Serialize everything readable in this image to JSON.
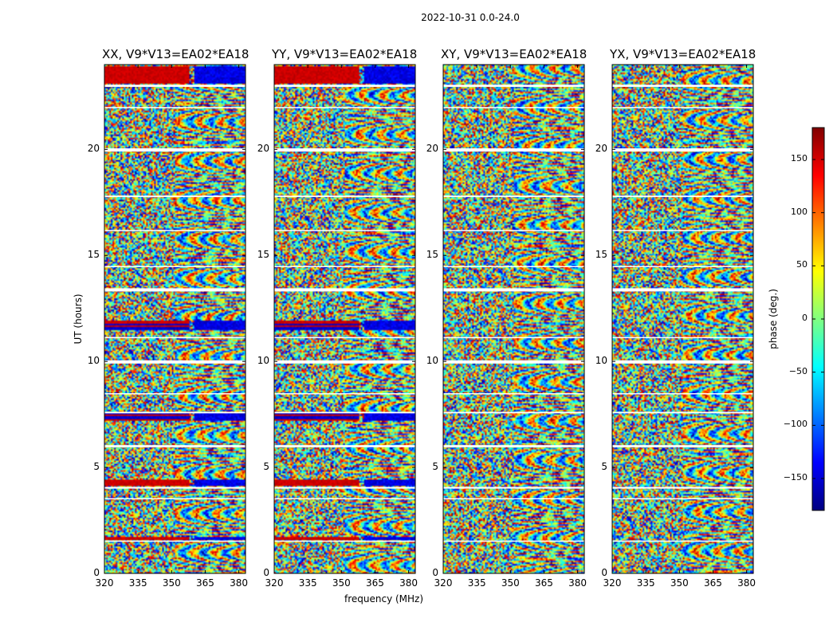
{
  "suptitle": "2022-10-31 0.0-24.0",
  "chart_data": {
    "type": "heatmap",
    "ylabel": "UT (hours)",
    "xlabel": "frequency (MHz)",
    "xlim": [
      320,
      383
    ],
    "ylim": [
      0,
      24
    ],
    "xticks": [
      320,
      335,
      350,
      365,
      380
    ],
    "yticks": [
      0,
      5,
      10,
      15,
      20
    ],
    "panels": [
      {
        "title": "XX, V9*V13=EA02*EA18",
        "strong_bands": [
          [
            11.45,
            11.9
          ],
          [
            7.2,
            7.55
          ],
          [
            4.15,
            4.45
          ],
          [
            1.55,
            1.75
          ],
          [
            23.1,
            23.9
          ]
        ]
      },
      {
        "title": "YY, V9*V13=EA02*EA18",
        "strong_bands": [
          [
            11.45,
            11.9
          ],
          [
            7.2,
            7.55
          ],
          [
            4.15,
            4.45
          ],
          [
            1.55,
            1.75
          ],
          [
            23.1,
            23.9
          ]
        ]
      },
      {
        "title": "XY, V9*V13=EA02*EA18",
        "strong_bands": []
      },
      {
        "title": "YX, V9*V13=EA02*EA18",
        "strong_bands": []
      }
    ],
    "gap_bands_hours": [
      [
        1.5,
        1.55
      ],
      [
        3.5,
        3.55
      ],
      [
        4.0,
        4.08
      ],
      [
        5.95,
        6.05
      ],
      [
        7.55,
        7.62
      ],
      [
        8.45,
        8.5
      ],
      [
        9.9,
        10.05
      ],
      [
        11.1,
        11.15
      ],
      [
        13.3,
        13.45
      ],
      [
        14.45,
        14.5
      ],
      [
        16.15,
        16.2
      ],
      [
        17.75,
        17.82
      ],
      [
        19.9,
        20.05
      ],
      [
        21.95,
        22.0
      ],
      [
        22.95,
        23.05
      ]
    ],
    "colorbar": {
      "label": "phase (deg.)",
      "range": [
        -180,
        180
      ],
      "ticks": [
        -150,
        -100,
        -50,
        0,
        50,
        100,
        150
      ],
      "colormap": "jet"
    }
  }
}
